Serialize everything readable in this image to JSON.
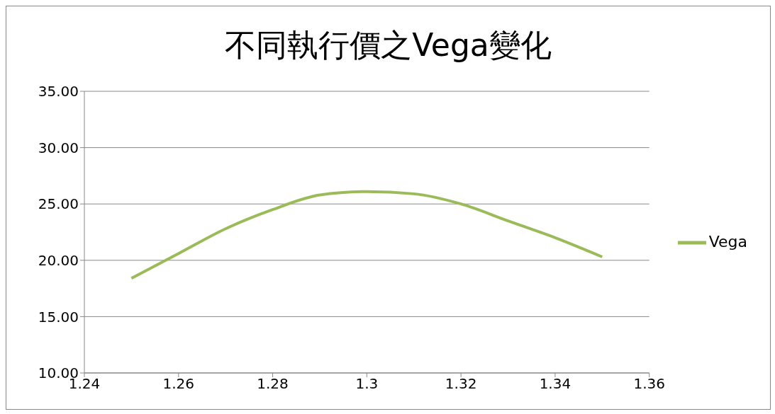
{
  "chart_data": {
    "type": "line",
    "title": "不同執行價之Vega變化",
    "x": [
      1.25,
      1.26,
      1.27,
      1.28,
      1.29,
      1.3,
      1.31,
      1.32,
      1.33,
      1.34,
      1.35
    ],
    "series": [
      {
        "name": "Vega",
        "color": "#9bbb59",
        "values": [
          18.4,
          20.6,
          22.8,
          24.5,
          25.8,
          26.1,
          25.9,
          25.0,
          23.5,
          22.0,
          20.3
        ]
      }
    ],
    "xlim": [
      1.24,
      1.36
    ],
    "xticks": [
      1.24,
      1.26,
      1.28,
      1.3,
      1.32,
      1.34,
      1.36
    ],
    "ylim": [
      10,
      35
    ],
    "yticks": [
      {
        "value": 10,
        "label": "10.00"
      },
      {
        "value": 15,
        "label": "15.00"
      },
      {
        "value": 20,
        "label": "20.00"
      },
      {
        "value": 25,
        "label": "25.00"
      },
      {
        "value": 30,
        "label": "30.00"
      },
      {
        "value": 35,
        "label": "35.00"
      }
    ],
    "grid": "y",
    "legend": "right",
    "marker": "none"
  }
}
